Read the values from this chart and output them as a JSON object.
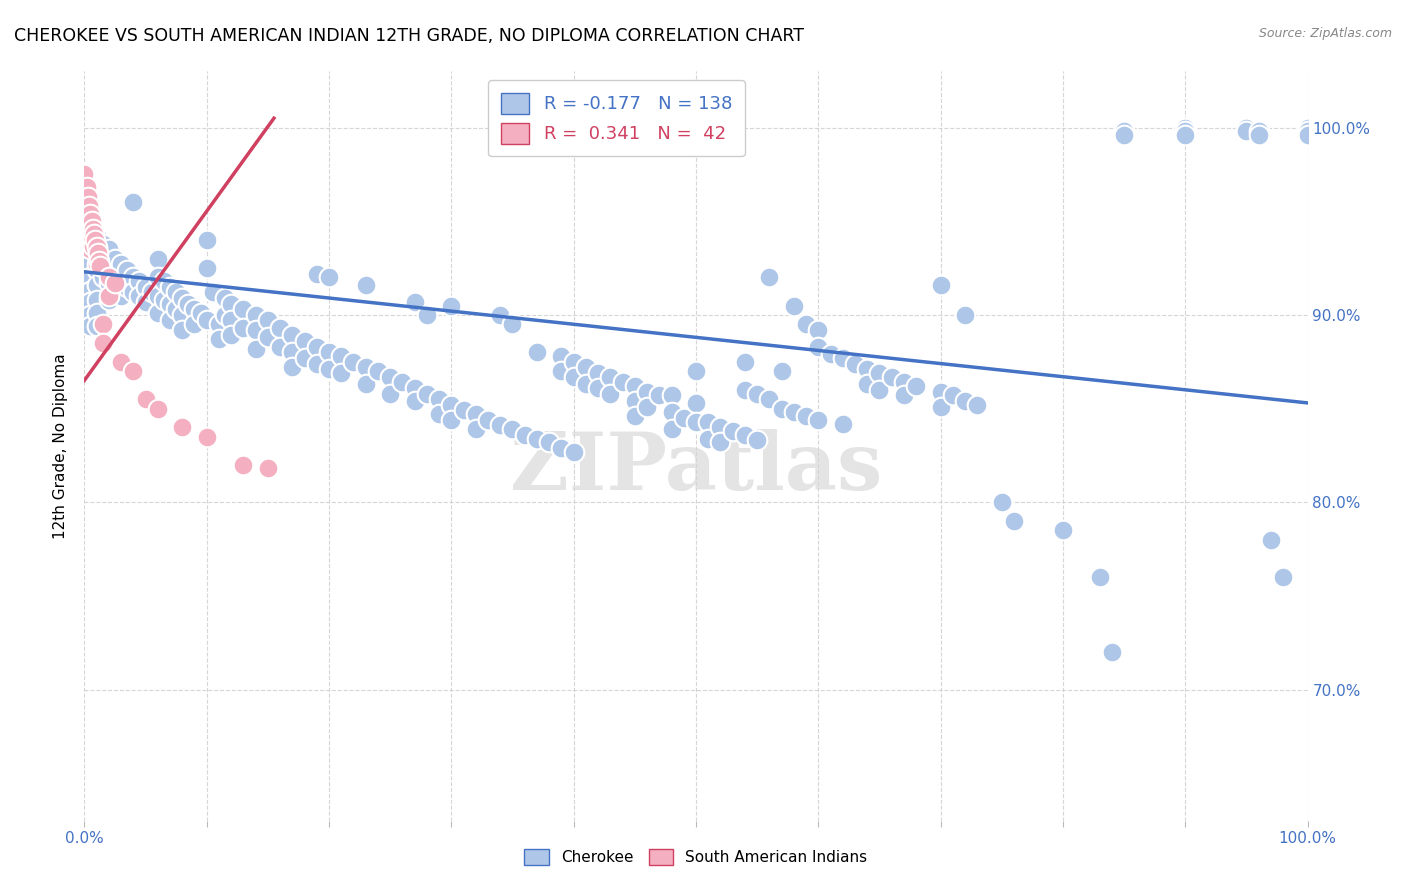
{
  "title": "CHEROKEE VS SOUTH AMERICAN INDIAN 12TH GRADE, NO DIPLOMA CORRELATION CHART",
  "source": "Source: ZipAtlas.com",
  "ylabel": "12th Grade, No Diploma",
  "xlim": [
    0.0,
    1.0
  ],
  "ylim": [
    0.63,
    1.03
  ],
  "blue_color": "#aec6e8",
  "pink_color": "#f4afc0",
  "blue_line_color": "#4472c4",
  "pink_line_color": "#d04060",
  "R_blue": -0.177,
  "N_blue": 138,
  "R_pink": 0.341,
  "N_pink": 42,
  "watermark": "ZIPatlas",
  "blue_trend": [
    0.0,
    1.0,
    0.923,
    0.853
  ],
  "pink_trend": [
    0.0,
    0.155,
    0.865,
    1.005
  ],
  "blue_points": [
    [
      0.005,
      0.945
    ],
    [
      0.005,
      0.935
    ],
    [
      0.005,
      0.928
    ],
    [
      0.005,
      0.92
    ],
    [
      0.005,
      0.913
    ],
    [
      0.005,
      0.907
    ],
    [
      0.005,
      0.9
    ],
    [
      0.005,
      0.894
    ],
    [
      0.01,
      0.942
    ],
    [
      0.01,
      0.932
    ],
    [
      0.01,
      0.924
    ],
    [
      0.01,
      0.916
    ],
    [
      0.01,
      0.908
    ],
    [
      0.01,
      0.901
    ],
    [
      0.01,
      0.894
    ],
    [
      0.015,
      0.938
    ],
    [
      0.015,
      0.928
    ],
    [
      0.015,
      0.92
    ],
    [
      0.02,
      0.935
    ],
    [
      0.02,
      0.924
    ],
    [
      0.02,
      0.917
    ],
    [
      0.02,
      0.908
    ],
    [
      0.025,
      0.93
    ],
    [
      0.025,
      0.921
    ],
    [
      0.025,
      0.913
    ],
    [
      0.03,
      0.927
    ],
    [
      0.03,
      0.918
    ],
    [
      0.03,
      0.91
    ],
    [
      0.035,
      0.924
    ],
    [
      0.035,
      0.915
    ],
    [
      0.04,
      0.96
    ],
    [
      0.04,
      0.92
    ],
    [
      0.04,
      0.912
    ],
    [
      0.045,
      0.918
    ],
    [
      0.045,
      0.91
    ],
    [
      0.05,
      0.915
    ],
    [
      0.05,
      0.907
    ],
    [
      0.055,
      0.912
    ],
    [
      0.06,
      0.93
    ],
    [
      0.06,
      0.92
    ],
    [
      0.06,
      0.91
    ],
    [
      0.06,
      0.901
    ],
    [
      0.065,
      0.918
    ],
    [
      0.065,
      0.908
    ],
    [
      0.07,
      0.915
    ],
    [
      0.07,
      0.906
    ],
    [
      0.07,
      0.897
    ],
    [
      0.075,
      0.912
    ],
    [
      0.075,
      0.903
    ],
    [
      0.08,
      0.909
    ],
    [
      0.08,
      0.9
    ],
    [
      0.08,
      0.892
    ],
    [
      0.085,
      0.906
    ],
    [
      0.09,
      0.903
    ],
    [
      0.09,
      0.895
    ],
    [
      0.095,
      0.901
    ],
    [
      0.1,
      0.94
    ],
    [
      0.1,
      0.925
    ],
    [
      0.1,
      0.897
    ],
    [
      0.105,
      0.912
    ],
    [
      0.11,
      0.895
    ],
    [
      0.11,
      0.887
    ],
    [
      0.115,
      0.909
    ],
    [
      0.115,
      0.9
    ],
    [
      0.12,
      0.906
    ],
    [
      0.12,
      0.897
    ],
    [
      0.12,
      0.889
    ],
    [
      0.13,
      0.903
    ],
    [
      0.13,
      0.893
    ],
    [
      0.14,
      0.9
    ],
    [
      0.14,
      0.892
    ],
    [
      0.14,
      0.882
    ],
    [
      0.15,
      0.897
    ],
    [
      0.15,
      0.888
    ],
    [
      0.16,
      0.893
    ],
    [
      0.16,
      0.883
    ],
    [
      0.17,
      0.889
    ],
    [
      0.17,
      0.88
    ],
    [
      0.17,
      0.872
    ],
    [
      0.18,
      0.886
    ],
    [
      0.18,
      0.877
    ],
    [
      0.19,
      0.922
    ],
    [
      0.19,
      0.883
    ],
    [
      0.19,
      0.874
    ],
    [
      0.2,
      0.92
    ],
    [
      0.2,
      0.88
    ],
    [
      0.2,
      0.871
    ],
    [
      0.21,
      0.878
    ],
    [
      0.21,
      0.869
    ],
    [
      0.22,
      0.875
    ],
    [
      0.23,
      0.916
    ],
    [
      0.23,
      0.872
    ],
    [
      0.23,
      0.863
    ],
    [
      0.24,
      0.87
    ],
    [
      0.25,
      0.867
    ],
    [
      0.25,
      0.858
    ],
    [
      0.26,
      0.864
    ],
    [
      0.27,
      0.907
    ],
    [
      0.27,
      0.861
    ],
    [
      0.27,
      0.854
    ],
    [
      0.28,
      0.9
    ],
    [
      0.28,
      0.858
    ],
    [
      0.29,
      0.855
    ],
    [
      0.29,
      0.847
    ],
    [
      0.3,
      0.905
    ],
    [
      0.3,
      0.852
    ],
    [
      0.3,
      0.844
    ],
    [
      0.31,
      0.849
    ],
    [
      0.32,
      0.847
    ],
    [
      0.32,
      0.839
    ],
    [
      0.33,
      0.844
    ],
    [
      0.34,
      0.9
    ],
    [
      0.34,
      0.841
    ],
    [
      0.35,
      0.895
    ],
    [
      0.35,
      0.839
    ],
    [
      0.36,
      0.836
    ],
    [
      0.37,
      0.88
    ],
    [
      0.37,
      0.834
    ],
    [
      0.38,
      0.832
    ],
    [
      0.39,
      0.878
    ],
    [
      0.39,
      0.87
    ],
    [
      0.39,
      0.829
    ],
    [
      0.4,
      0.875
    ],
    [
      0.4,
      0.867
    ],
    [
      0.4,
      0.827
    ],
    [
      0.41,
      0.872
    ],
    [
      0.41,
      0.863
    ],
    [
      0.42,
      0.869
    ],
    [
      0.42,
      0.861
    ],
    [
      0.43,
      0.867
    ],
    [
      0.43,
      0.858
    ],
    [
      0.44,
      0.864
    ],
    [
      0.45,
      0.862
    ],
    [
      0.45,
      0.854
    ],
    [
      0.45,
      0.846
    ],
    [
      0.46,
      0.859
    ],
    [
      0.46,
      0.851
    ],
    [
      0.47,
      0.857
    ],
    [
      0.48,
      0.857
    ],
    [
      0.48,
      0.848
    ],
    [
      0.48,
      0.839
    ],
    [
      0.49,
      0.845
    ],
    [
      0.5,
      0.87
    ],
    [
      0.5,
      0.853
    ],
    [
      0.5,
      0.843
    ],
    [
      0.51,
      0.843
    ],
    [
      0.51,
      0.834
    ],
    [
      0.52,
      0.84
    ],
    [
      0.52,
      0.832
    ],
    [
      0.53,
      0.838
    ],
    [
      0.54,
      0.875
    ],
    [
      0.54,
      0.86
    ],
    [
      0.54,
      0.836
    ],
    [
      0.55,
      0.858
    ],
    [
      0.55,
      0.833
    ],
    [
      0.56,
      0.92
    ],
    [
      0.56,
      0.855
    ],
    [
      0.57,
      0.87
    ],
    [
      0.57,
      0.85
    ],
    [
      0.58,
      0.905
    ],
    [
      0.58,
      0.848
    ],
    [
      0.59,
      0.895
    ],
    [
      0.59,
      0.846
    ],
    [
      0.6,
      0.892
    ],
    [
      0.6,
      0.883
    ],
    [
      0.6,
      0.844
    ],
    [
      0.61,
      0.879
    ],
    [
      0.62,
      0.877
    ],
    [
      0.62,
      0.842
    ],
    [
      0.63,
      0.874
    ],
    [
      0.64,
      0.871
    ],
    [
      0.64,
      0.863
    ],
    [
      0.65,
      0.869
    ],
    [
      0.65,
      0.86
    ],
    [
      0.66,
      0.867
    ],
    [
      0.67,
      0.864
    ],
    [
      0.67,
      0.857
    ],
    [
      0.68,
      0.862
    ],
    [
      0.7,
      0.916
    ],
    [
      0.7,
      0.859
    ],
    [
      0.7,
      0.851
    ],
    [
      0.71,
      0.857
    ],
    [
      0.72,
      0.9
    ],
    [
      0.72,
      0.854
    ],
    [
      0.73,
      0.852
    ],
    [
      0.75,
      0.8
    ],
    [
      0.76,
      0.79
    ],
    [
      0.8,
      0.785
    ],
    [
      0.83,
      0.76
    ],
    [
      0.84,
      0.72
    ],
    [
      0.85,
      0.998
    ],
    [
      0.85,
      0.996
    ],
    [
      0.9,
      1.0
    ],
    [
      0.9,
      0.998
    ],
    [
      0.9,
      0.996
    ],
    [
      0.95,
      1.0
    ],
    [
      0.95,
      0.998
    ],
    [
      0.96,
      0.998
    ],
    [
      0.96,
      0.996
    ],
    [
      0.97,
      0.78
    ],
    [
      0.98,
      0.76
    ],
    [
      1.0,
      1.0
    ],
    [
      1.0,
      0.998
    ],
    [
      1.0,
      0.996
    ]
  ],
  "pink_points": [
    [
      0.0,
      0.975
    ],
    [
      0.0,
      0.962
    ],
    [
      0.0,
      0.951
    ],
    [
      0.0,
      0.942
    ],
    [
      0.002,
      0.968
    ],
    [
      0.002,
      0.957
    ],
    [
      0.002,
      0.947
    ],
    [
      0.003,
      0.963
    ],
    [
      0.003,
      0.952
    ],
    [
      0.003,
      0.942
    ],
    [
      0.004,
      0.958
    ],
    [
      0.004,
      0.948
    ],
    [
      0.004,
      0.938
    ],
    [
      0.005,
      0.954
    ],
    [
      0.005,
      0.944
    ],
    [
      0.005,
      0.935
    ],
    [
      0.006,
      0.95
    ],
    [
      0.006,
      0.94
    ],
    [
      0.007,
      0.946
    ],
    [
      0.007,
      0.937
    ],
    [
      0.008,
      0.943
    ],
    [
      0.009,
      0.94
    ],
    [
      0.01,
      0.936
    ],
    [
      0.01,
      0.927
    ],
    [
      0.011,
      0.933
    ],
    [
      0.012,
      0.929
    ],
    [
      0.013,
      0.926
    ],
    [
      0.015,
      0.895
    ],
    [
      0.015,
      0.885
    ],
    [
      0.02,
      0.92
    ],
    [
      0.02,
      0.91
    ],
    [
      0.025,
      0.917
    ],
    [
      0.03,
      0.875
    ],
    [
      0.04,
      0.87
    ],
    [
      0.05,
      0.855
    ],
    [
      0.06,
      0.85
    ],
    [
      0.08,
      0.84
    ],
    [
      0.1,
      0.835
    ],
    [
      0.13,
      0.82
    ],
    [
      0.15,
      0.818
    ]
  ]
}
